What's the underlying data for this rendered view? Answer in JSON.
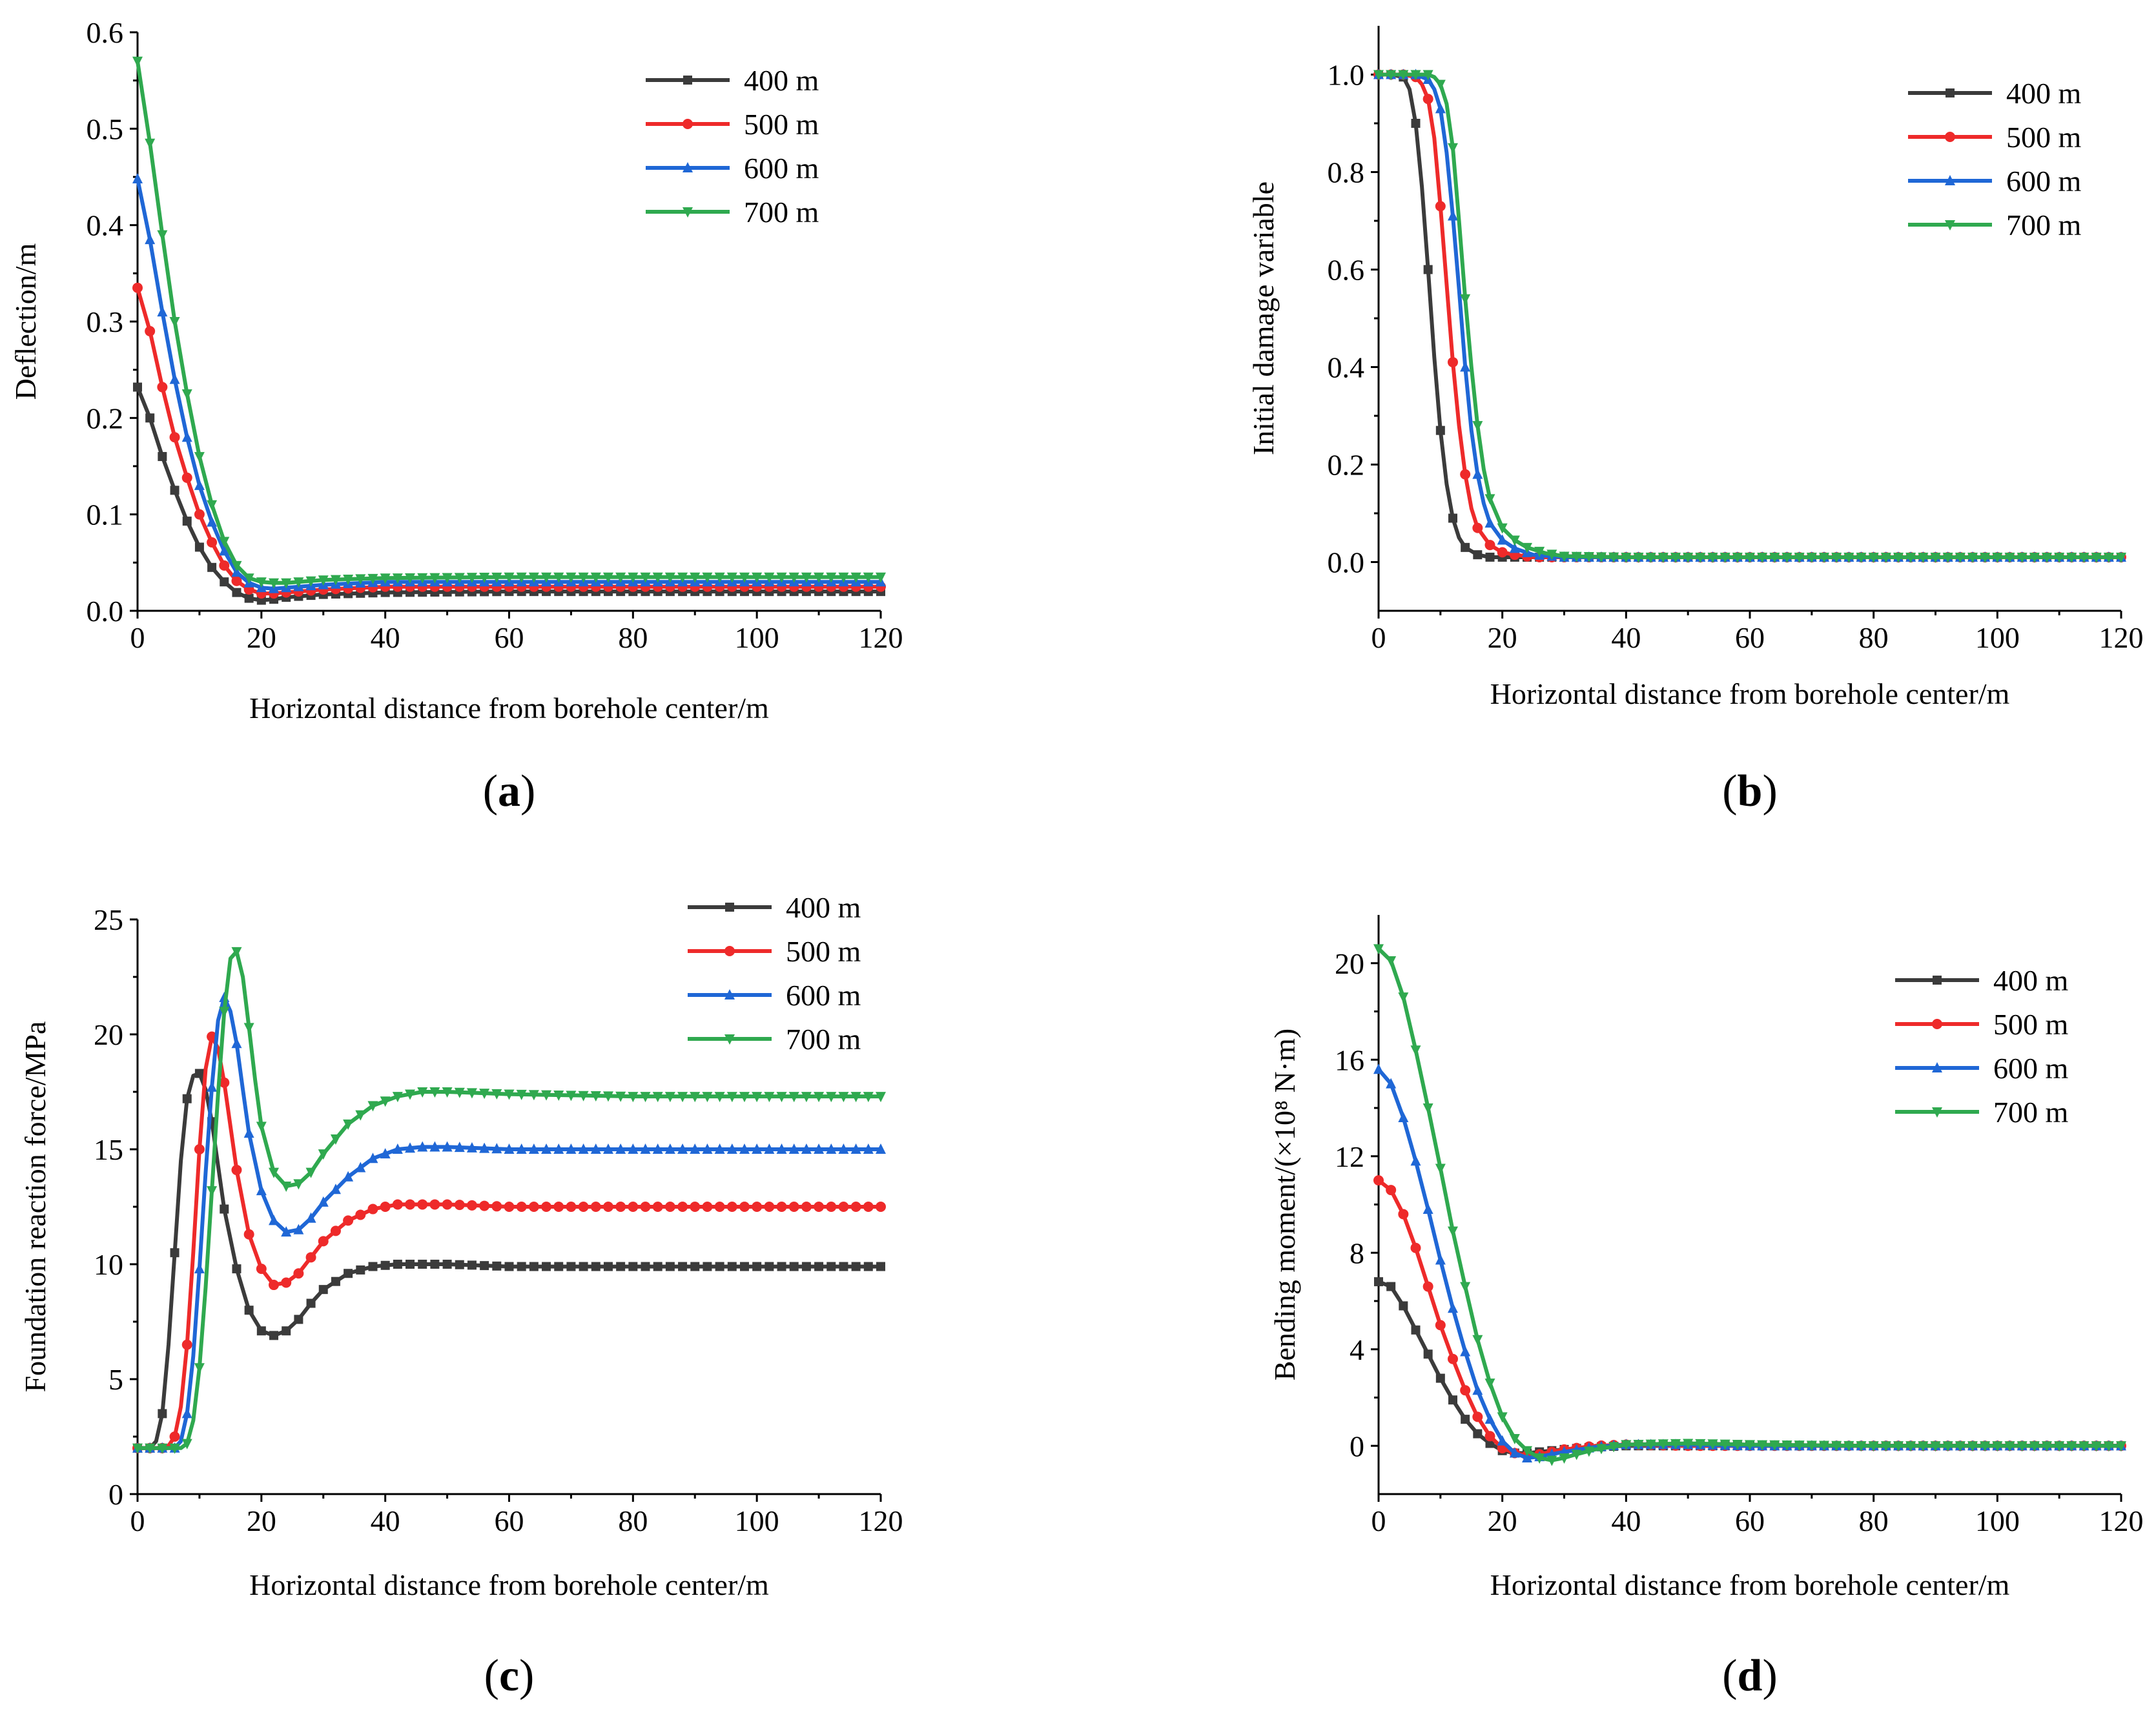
{
  "colors": {
    "400 m": "#3b3b3b",
    "500 m": "#ee2a2a",
    "600 m": "#1f67d6",
    "700 m": "#2fa94f"
  },
  "markers": {
    "400 m": "square",
    "500 m": "circle",
    "600 m": "triangle-up",
    "700 m": "triangle-down"
  },
  "chart_data": [
    {
      "id": "a",
      "panel_label": "a",
      "type": "line",
      "xlabel": "Horizontal distance from borehole center/m",
      "ylabel": "Deflection/m",
      "xlim": [
        0,
        120
      ],
      "ylim": [
        0,
        0.6
      ],
      "xticks": [
        0,
        20,
        40,
        60,
        80,
        100,
        120
      ],
      "xtick_labels": [
        "0",
        "20",
        "40",
        "60",
        "80",
        "100",
        "120"
      ],
      "yticks": [
        0,
        0.1,
        0.2,
        0.3,
        0.4,
        0.5,
        0.6
      ],
      "ytick_labels": [
        "0.0",
        "0.1",
        "0.2",
        "0.3",
        "0.4",
        "0.5",
        "0.6"
      ],
      "legend_position": "top-right",
      "series": [
        {
          "name": "400 m",
          "x": [
            0,
            2,
            4,
            6,
            8,
            10,
            12,
            14,
            16,
            18,
            20,
            22,
            24,
            30,
            40,
            60,
            80,
            100,
            120
          ],
          "values": [
            0.232,
            0.2,
            0.16,
            0.125,
            0.093,
            0.066,
            0.045,
            0.03,
            0.019,
            0.013,
            0.011,
            0.012,
            0.014,
            0.017,
            0.019,
            0.02,
            0.02,
            0.02,
            0.02
          ]
        },
        {
          "name": "500 m",
          "x": [
            0,
            2,
            4,
            6,
            8,
            10,
            12,
            14,
            16,
            18,
            20,
            22,
            24,
            30,
            40,
            60,
            80,
            100,
            120
          ],
          "values": [
            0.335,
            0.29,
            0.232,
            0.18,
            0.138,
            0.1,
            0.071,
            0.047,
            0.031,
            0.022,
            0.018,
            0.018,
            0.019,
            0.022,
            0.025,
            0.025,
            0.025,
            0.025,
            0.025
          ]
        },
        {
          "name": "600 m",
          "x": [
            0,
            2,
            4,
            6,
            8,
            10,
            12,
            14,
            16,
            18,
            20,
            22,
            24,
            30,
            40,
            60,
            80,
            100,
            120
          ],
          "values": [
            0.448,
            0.385,
            0.31,
            0.24,
            0.18,
            0.13,
            0.092,
            0.062,
            0.04,
            0.029,
            0.024,
            0.023,
            0.024,
            0.027,
            0.03,
            0.03,
            0.03,
            0.03,
            0.03
          ]
        },
        {
          "name": "700 m",
          "x": [
            0,
            2,
            4,
            6,
            8,
            10,
            12,
            14,
            16,
            18,
            20,
            22,
            24,
            30,
            40,
            60,
            80,
            100,
            120
          ],
          "values": [
            0.57,
            0.485,
            0.39,
            0.3,
            0.225,
            0.16,
            0.11,
            0.072,
            0.047,
            0.034,
            0.03,
            0.029,
            0.029,
            0.032,
            0.034,
            0.035,
            0.035,
            0.035,
            0.035
          ]
        }
      ]
    },
    {
      "id": "b",
      "panel_label": "b",
      "type": "line",
      "xlabel": "Horizontal distance from borehole center/m",
      "ylabel": "Initial damage variable",
      "xlim": [
        0,
        120
      ],
      "ylim": [
        -0.1,
        1.1
      ],
      "xticks": [
        0,
        20,
        40,
        60,
        80,
        100,
        120
      ],
      "xtick_labels": [
        "0",
        "20",
        "40",
        "60",
        "80",
        "100",
        "120"
      ],
      "yticks": [
        0,
        0.2,
        0.4,
        0.6,
        0.8,
        1.0
      ],
      "ytick_labels": [
        "0.0",
        "0.2",
        "0.4",
        "0.6",
        "0.8",
        "1.0"
      ],
      "legend_position": "top-right",
      "series": [
        {
          "name": "400 m",
          "x": [
            0,
            2,
            4,
            5,
            6,
            7,
            8,
            9,
            10,
            11,
            12,
            13,
            14,
            16,
            18,
            20,
            25,
            30,
            40,
            60,
            80,
            100,
            120
          ],
          "values": [
            1.0,
            1.0,
            0.995,
            0.97,
            0.9,
            0.77,
            0.6,
            0.42,
            0.27,
            0.16,
            0.09,
            0.05,
            0.03,
            0.015,
            0.01,
            0.01,
            0.01,
            0.01,
            0.01,
            0.01,
            0.01,
            0.01,
            0.01
          ]
        },
        {
          "name": "500 m",
          "x": [
            0,
            2,
            4,
            6,
            7,
            8,
            9,
            10,
            11,
            12,
            13,
            14,
            15,
            16,
            18,
            20,
            22,
            25,
            30,
            40,
            60,
            80,
            100,
            120
          ],
          "values": [
            1.0,
            1.0,
            1.0,
            0.995,
            0.98,
            0.95,
            0.87,
            0.73,
            0.57,
            0.41,
            0.28,
            0.18,
            0.11,
            0.07,
            0.035,
            0.02,
            0.015,
            0.01,
            0.01,
            0.01,
            0.01,
            0.01,
            0.01,
            0.01
          ]
        },
        {
          "name": "600 m",
          "x": [
            0,
            2,
            4,
            6,
            8,
            9,
            10,
            11,
            12,
            13,
            14,
            15,
            16,
            17,
            18,
            20,
            22,
            25,
            30,
            40,
            60,
            80,
            100,
            120
          ],
          "values": [
            1.0,
            1.0,
            1.0,
            1.0,
            0.99,
            0.97,
            0.93,
            0.84,
            0.71,
            0.56,
            0.4,
            0.27,
            0.18,
            0.12,
            0.08,
            0.045,
            0.028,
            0.015,
            0.01,
            0.01,
            0.01,
            0.01,
            0.01,
            0.01
          ]
        },
        {
          "name": "700 m",
          "x": [
            0,
            2,
            4,
            6,
            8,
            9,
            10,
            11,
            12,
            13,
            14,
            15,
            16,
            17,
            18,
            20,
            22,
            24,
            27,
            30,
            40,
            60,
            80,
            100,
            120
          ],
          "values": [
            1.0,
            1.0,
            1.0,
            1.0,
            1.0,
            0.995,
            0.98,
            0.94,
            0.85,
            0.7,
            0.54,
            0.4,
            0.28,
            0.19,
            0.13,
            0.07,
            0.045,
            0.03,
            0.018,
            0.012,
            0.01,
            0.01,
            0.01,
            0.01,
            0.01
          ]
        }
      ]
    },
    {
      "id": "c",
      "panel_label": "c",
      "type": "line",
      "xlabel": "Horizontal distance from borehole center/m",
      "ylabel": "Foundation reaction force/MPa",
      "xlim": [
        0,
        120
      ],
      "ylim": [
        0,
        25
      ],
      "xticks": [
        0,
        20,
        40,
        60,
        80,
        100,
        120
      ],
      "xtick_labels": [
        "0",
        "20",
        "40",
        "60",
        "80",
        "100",
        "120"
      ],
      "yticks": [
        0,
        5,
        10,
        15,
        20,
        25
      ],
      "ytick_labels": [
        "0",
        "5",
        "10",
        "15",
        "20",
        "25"
      ],
      "legend_position": "top-right",
      "series": [
        {
          "name": "400 m",
          "x": [
            0,
            2,
            3,
            4,
            5,
            6,
            7,
            8,
            9,
            10,
            11,
            12,
            13,
            14,
            16,
            18,
            20,
            22,
            24,
            26,
            28,
            30,
            34,
            38,
            42,
            46,
            50,
            60,
            80,
            100,
            120
          ],
          "values": [
            2.0,
            2.0,
            2.3,
            3.5,
            6.5,
            10.5,
            14.5,
            17.2,
            18.2,
            18.3,
            17.6,
            16.2,
            14.3,
            12.4,
            9.8,
            8.0,
            7.1,
            6.9,
            7.1,
            7.6,
            8.3,
            8.9,
            9.6,
            9.9,
            10.0,
            10.0,
            10.0,
            9.9,
            9.9,
            9.9,
            9.9
          ]
        },
        {
          "name": "500 m",
          "x": [
            0,
            2,
            4,
            5,
            6,
            7,
            8,
            9,
            10,
            11,
            12,
            13,
            14,
            15,
            16,
            18,
            20,
            22,
            24,
            26,
            28,
            30,
            34,
            38,
            42,
            46,
            50,
            60,
            80,
            100,
            120
          ],
          "values": [
            2.0,
            2.0,
            2.0,
            2.1,
            2.5,
            3.8,
            6.5,
            10.5,
            15.0,
            18.5,
            19.9,
            19.4,
            17.9,
            16.0,
            14.1,
            11.3,
            9.8,
            9.1,
            9.2,
            9.6,
            10.3,
            11.0,
            11.9,
            12.4,
            12.6,
            12.6,
            12.6,
            12.5,
            12.5,
            12.5,
            12.5
          ]
        },
        {
          "name": "600 m",
          "x": [
            0,
            2,
            4,
            6,
            7,
            8,
            9,
            10,
            11,
            12,
            13,
            14,
            15,
            16,
            17,
            18,
            20,
            22,
            24,
            26,
            28,
            30,
            34,
            38,
            42,
            46,
            50,
            60,
            80,
            100,
            120
          ],
          "values": [
            2.0,
            2.0,
            2.0,
            2.0,
            2.3,
            3.5,
            6.0,
            9.8,
            14.0,
            17.7,
            20.6,
            21.6,
            21.0,
            19.6,
            17.6,
            15.7,
            13.2,
            11.9,
            11.4,
            11.5,
            12.0,
            12.7,
            13.8,
            14.6,
            15.0,
            15.1,
            15.1,
            15.0,
            15.0,
            15.0,
            15.0
          ]
        },
        {
          "name": "700 m",
          "x": [
            0,
            2,
            4,
            6,
            7,
            8,
            9,
            10,
            11,
            12,
            13,
            14,
            15,
            16,
            17,
            18,
            19,
            20,
            22,
            24,
            26,
            28,
            30,
            34,
            38,
            42,
            46,
            50,
            60,
            80,
            100,
            120
          ],
          "values": [
            2.0,
            2.0,
            2.0,
            2.0,
            2.0,
            2.2,
            3.2,
            5.5,
            9.0,
            13.2,
            17.4,
            21.0,
            23.3,
            23.6,
            22.5,
            20.3,
            18.0,
            16.0,
            14.0,
            13.4,
            13.5,
            14.0,
            14.8,
            16.1,
            16.9,
            17.3,
            17.5,
            17.5,
            17.4,
            17.3,
            17.3,
            17.3
          ]
        }
      ]
    },
    {
      "id": "d",
      "panel_label": "d",
      "type": "line",
      "xlabel": "Horizontal distance from borehole center/m",
      "ylabel": "Bending moment/(×10⁸ N·m)",
      "xlim": [
        0,
        120
      ],
      "ylim": [
        -2,
        22
      ],
      "xticks": [
        0,
        20,
        40,
        60,
        80,
        100,
        120
      ],
      "xtick_labels": [
        "0",
        "20",
        "40",
        "60",
        "80",
        "100",
        "120"
      ],
      "yticks": [
        0,
        4,
        8,
        12,
        16,
        20
      ],
      "ytick_labels": [
        "0",
        "4",
        "8",
        "12",
        "16",
        "20"
      ],
      "legend_position": "top-right",
      "series": [
        {
          "name": "400 m",
          "x": [
            0,
            2,
            4,
            6,
            8,
            10,
            12,
            14,
            16,
            18,
            20,
            22,
            24,
            26,
            30,
            35,
            40,
            50,
            60,
            80,
            100,
            120
          ],
          "values": [
            6.8,
            6.6,
            5.8,
            4.8,
            3.8,
            2.8,
            1.9,
            1.1,
            0.5,
            0.1,
            -0.2,
            -0.3,
            -0.3,
            -0.25,
            -0.15,
            -0.05,
            0.0,
            0.0,
            0.0,
            0.0,
            0.0,
            0.0
          ]
        },
        {
          "name": "500 m",
          "x": [
            0,
            2,
            4,
            6,
            8,
            10,
            12,
            14,
            16,
            18,
            20,
            22,
            24,
            26,
            28,
            30,
            35,
            40,
            50,
            60,
            80,
            100,
            120
          ],
          "values": [
            11.0,
            10.6,
            9.6,
            8.2,
            6.6,
            5.0,
            3.6,
            2.3,
            1.2,
            0.4,
            -0.1,
            -0.3,
            -0.4,
            -0.35,
            -0.25,
            -0.15,
            0.0,
            0.05,
            0.0,
            0.0,
            0.0,
            0.0,
            0.0
          ]
        },
        {
          "name": "600 m",
          "x": [
            0,
            2,
            4,
            6,
            8,
            10,
            12,
            14,
            16,
            18,
            20,
            22,
            24,
            26,
            28,
            30,
            35,
            40,
            50,
            60,
            80,
            100,
            120
          ],
          "values": [
            15.6,
            15.0,
            13.6,
            11.8,
            9.8,
            7.7,
            5.7,
            3.9,
            2.3,
            1.1,
            0.2,
            -0.3,
            -0.5,
            -0.45,
            -0.35,
            -0.25,
            -0.05,
            0.05,
            0.05,
            0.0,
            0.0,
            0.0,
            0.0
          ]
        },
        {
          "name": "700 m",
          "x": [
            0,
            2,
            4,
            6,
            8,
            10,
            12,
            14,
            16,
            18,
            20,
            22,
            24,
            26,
            28,
            30,
            32,
            35,
            40,
            50,
            60,
            80,
            100,
            120
          ],
          "values": [
            20.6,
            20.1,
            18.6,
            16.4,
            14.0,
            11.5,
            8.9,
            6.6,
            4.4,
            2.6,
            1.2,
            0.3,
            -0.2,
            -0.5,
            -0.6,
            -0.5,
            -0.35,
            -0.15,
            0.05,
            0.1,
            0.05,
            0.0,
            0.0,
            0.0
          ]
        }
      ]
    }
  ]
}
